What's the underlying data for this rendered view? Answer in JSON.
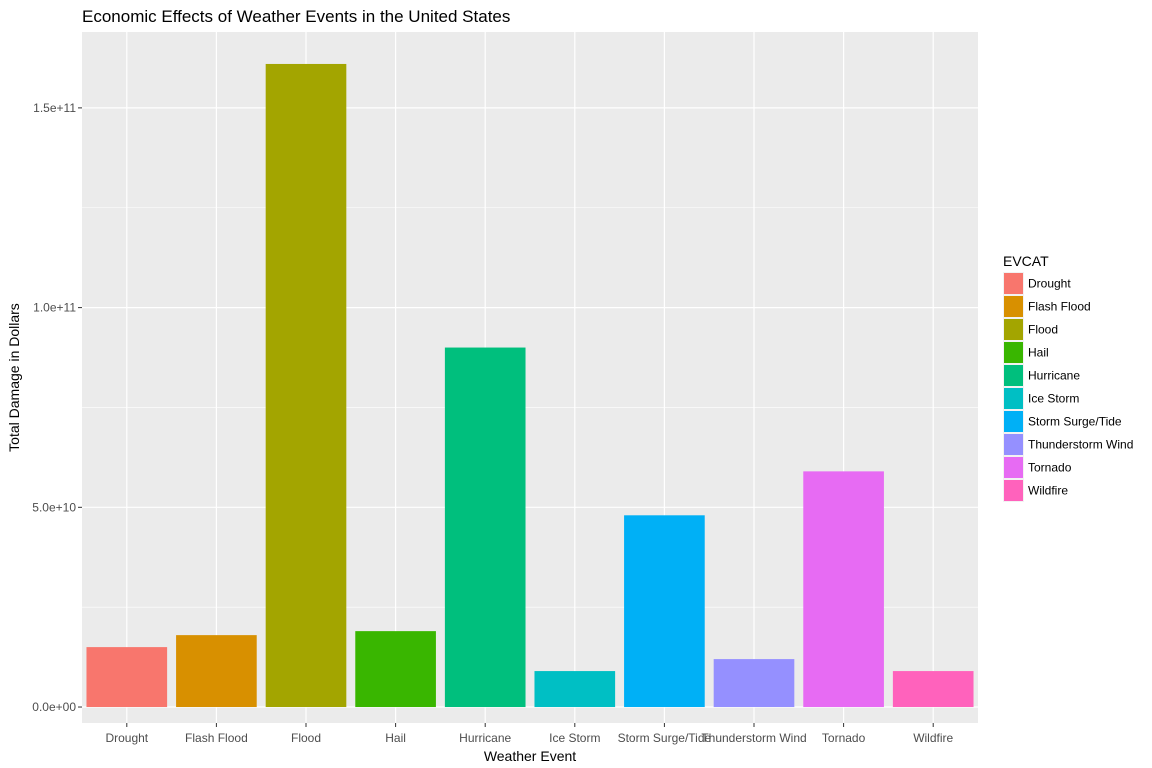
{
  "chart_data": {
    "type": "bar",
    "title": "Economic Effects of Weather Events in the United States",
    "xlabel": "Weather Event",
    "ylabel": "Total Damage in Dollars",
    "categories": [
      "Drought",
      "Flash Flood",
      "Flood",
      "Hail",
      "Hurricane",
      "Ice Storm",
      "Storm Surge/Tide",
      "Thunderstorm Wind",
      "Tornado",
      "Wildfire"
    ],
    "values": [
      15000000000,
      18000000000,
      161000000000,
      19000000000,
      90000000000,
      9000000000,
      48000000000,
      12000000000,
      59000000000,
      9000000000
    ],
    "colors": [
      "#F8766D",
      "#D89000",
      "#A3A500",
      "#39B600",
      "#00BF7D",
      "#00BFC4",
      "#00B0F6",
      "#9590FF",
      "#E76BF3",
      "#FF62BC"
    ],
    "ylim": [
      -4000000000,
      169000000000
    ],
    "yticks": [
      0,
      50000000000,
      100000000000,
      150000000000
    ],
    "ytick_labels": [
      "0.0e+00",
      "5.0e+10",
      "1.0e+11",
      "1.5e+11"
    ],
    "grid": true,
    "panel_background": "#EBEBEB",
    "legend": {
      "title": "EVCAT",
      "placement": "right",
      "entries": [
        "Drought",
        "Flash Flood",
        "Flood",
        "Hail",
        "Hurricane",
        "Ice Storm",
        "Storm Surge/Tide",
        "Thunderstorm Wind",
        "Tornado",
        "Wildfire"
      ]
    }
  }
}
